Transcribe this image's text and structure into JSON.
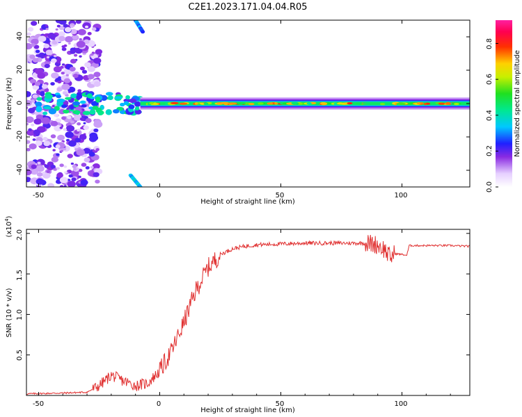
{
  "title": "C2E1.2023.171.04.04.R05",
  "chart_data": [
    {
      "type": "heatmap",
      "title": "C2E1.2023.171.04.04.R05",
      "xlabel": "Height of straight line (km)",
      "ylabel": "Frequency (Hz)",
      "xlim": [
        -55,
        128
      ],
      "ylim": [
        -50,
        50
      ],
      "xticks": [
        "-50",
        "0",
        "50",
        "100"
      ],
      "yticks": [
        "-40",
        "-20",
        "0",
        "20",
        "40"
      ],
      "colorbar": {
        "label": "Normalized spectral amplitude",
        "range": [
          0,
          0.93
        ],
        "ticks": [
          "0.0",
          "0.2",
          "0.4",
          "0.6",
          "0.8"
        ],
        "colormap": "rainbow (white-violet-blue-cyan-green-yellow-red-magenta)"
      },
      "features": [
        {
          "name": "narrow band at 0 Hz",
          "x_from": -8,
          "x_to": 128,
          "freq": 0,
          "amplitude": 0.75
        },
        {
          "name": "scattered noise",
          "x_from": -55,
          "x_to": -25,
          "freq_from": -50,
          "freq_to": 50,
          "amplitude": 0.15
        },
        {
          "name": "diagonal streak",
          "x_from": -10,
          "x_to": -7,
          "freq_from": 43,
          "freq_to": 50,
          "amplitude": 0.25
        },
        {
          "name": "diagonal streak",
          "x_from": -12,
          "x_to": -8,
          "freq_from": -50,
          "freq_to": -43,
          "amplitude": 0.3
        }
      ]
    },
    {
      "type": "line",
      "xlabel": "Height of straight line (km)",
      "ylabel": "SNR (10 * v/v)",
      "yscale_label": "(x10",
      "yscale_exp": "4",
      "xlim": [
        -55,
        128
      ],
      "ylim": [
        0,
        2.05
      ],
      "xticks": [
        "-50",
        "0",
        "50",
        "100"
      ],
      "yticks": [
        "0.5",
        "1.0",
        "1.5",
        "2.0"
      ],
      "color": "#e03030",
      "series": [
        {
          "x": [
            -55,
            -40,
            -30,
            -25,
            -20,
            -15,
            -10,
            -5,
            0,
            5,
            10,
            15,
            20,
            25,
            30,
            35,
            40,
            50,
            60,
            70,
            80,
            85,
            88,
            90,
            93,
            95,
            97,
            100,
            102,
            103,
            110,
            120,
            128
          ],
          "y": [
            0.02,
            0.03,
            0.04,
            0.12,
            0.25,
            0.18,
            0.12,
            0.15,
            0.3,
            0.55,
            0.9,
            1.3,
            1.58,
            1.74,
            1.81,
            1.84,
            1.86,
            1.87,
            1.88,
            1.88,
            1.88,
            1.88,
            1.87,
            1.86,
            1.8,
            1.7,
            1.75,
            1.74,
            1.73,
            1.85,
            1.85,
            1.85,
            1.84
          ]
        }
      ]
    }
  ]
}
